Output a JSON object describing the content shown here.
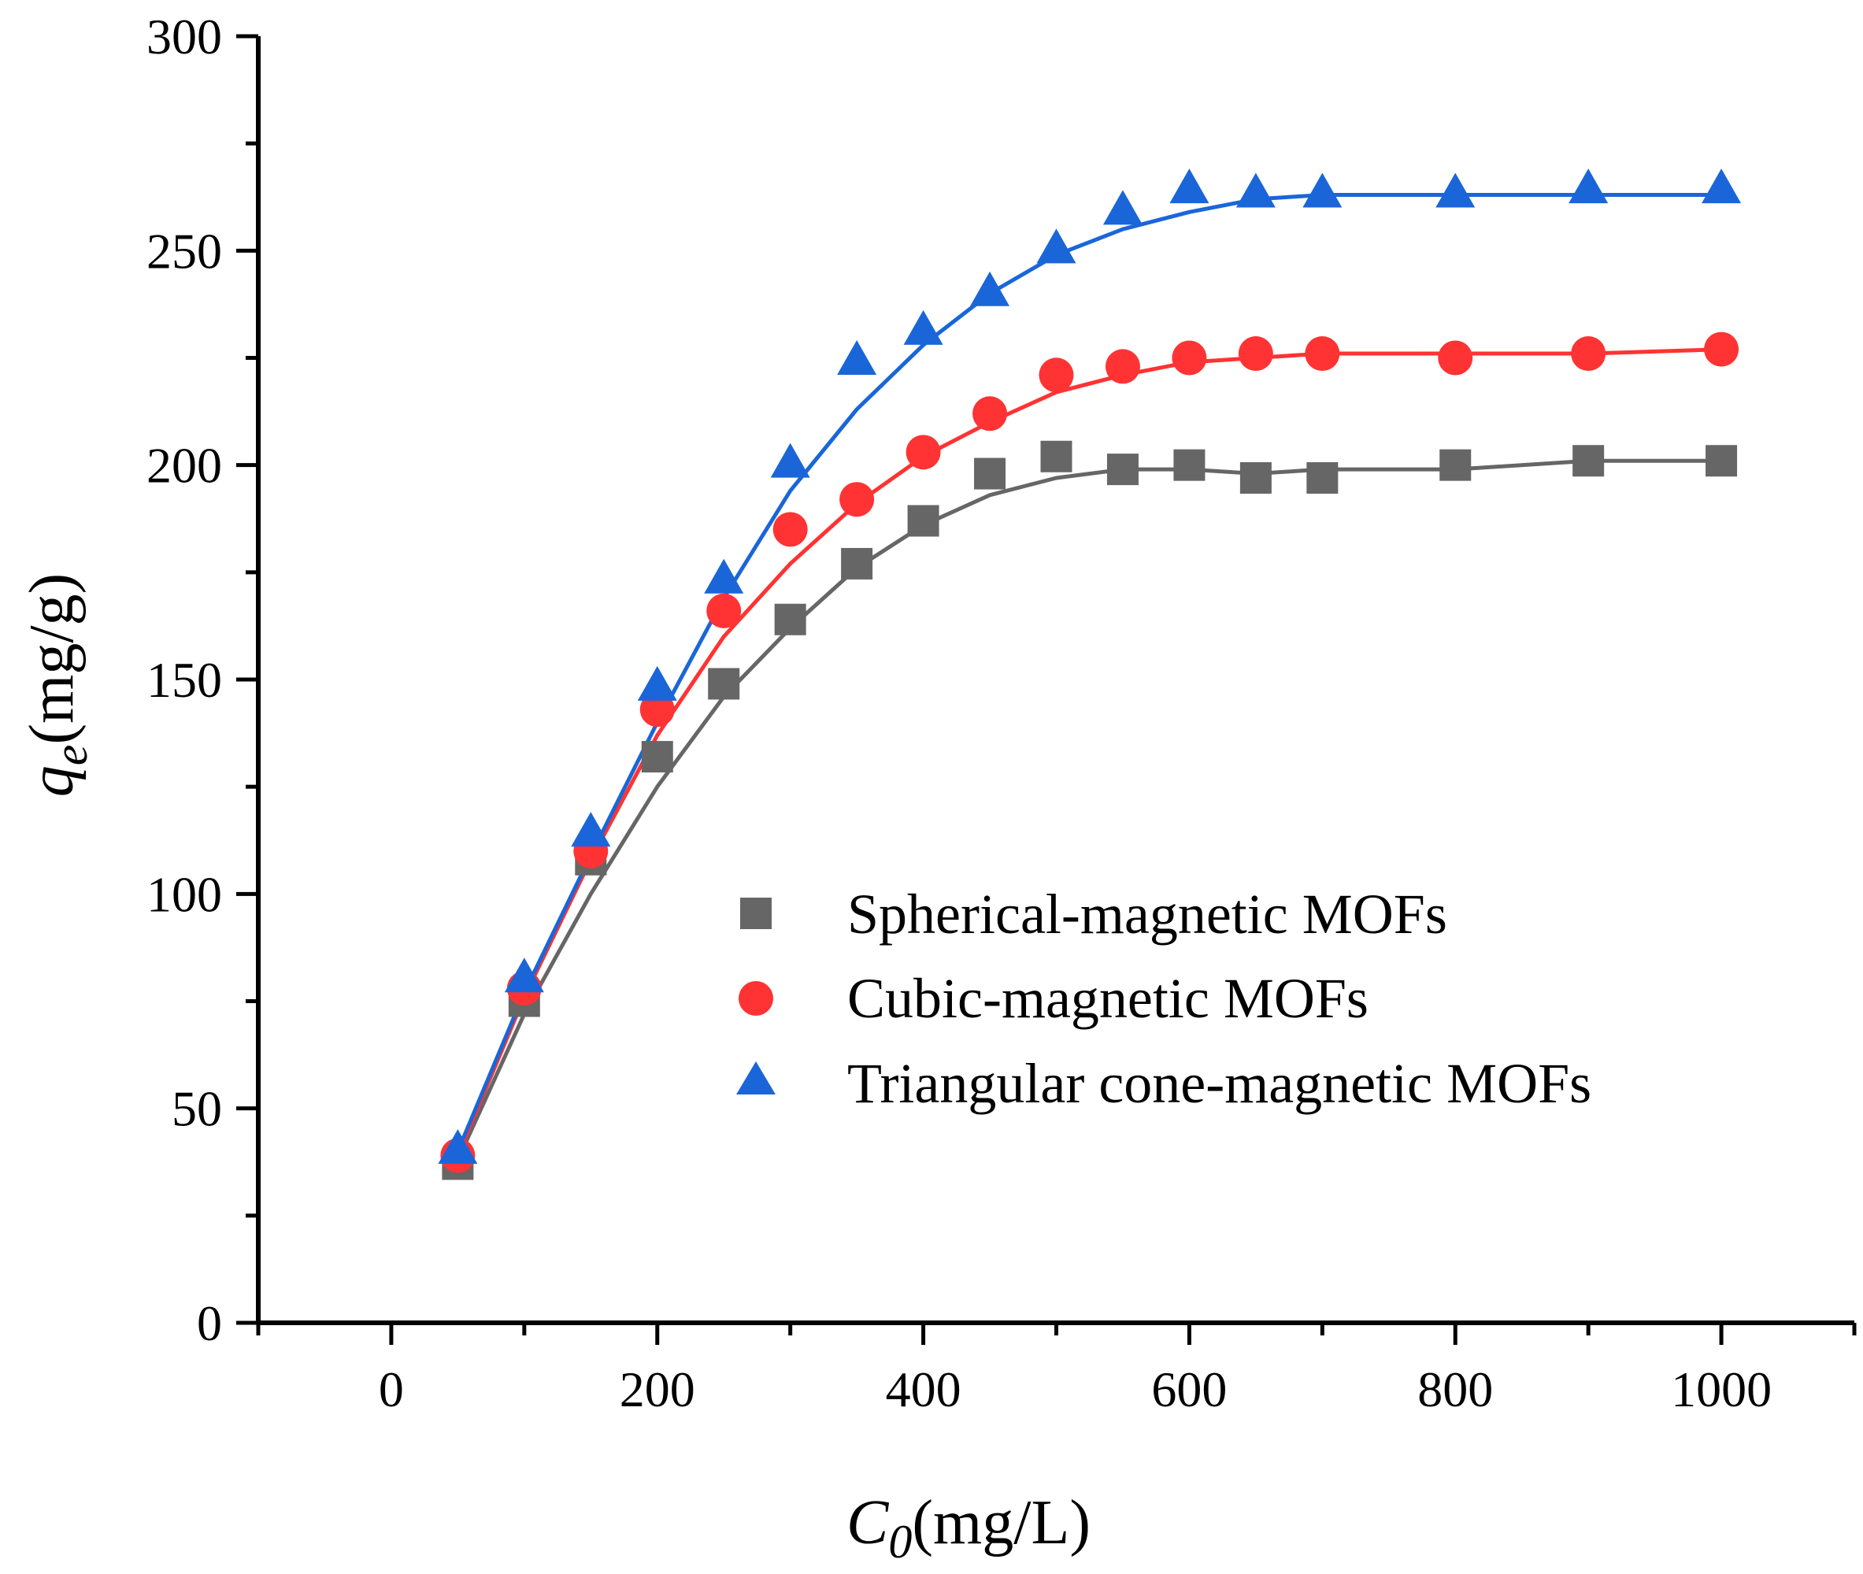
{
  "chart_data": {
    "type": "scatter",
    "title": "",
    "xlabel": {
      "main": "C",
      "sub": "0",
      "unit": "(mg/L)"
    },
    "ylabel": {
      "main": "q",
      "sub": "e",
      "unit": "(mg/g)"
    },
    "xlim": [
      -100,
      1100
    ],
    "ylim": [
      0,
      300
    ],
    "xticks": [
      0,
      200,
      400,
      600,
      800,
      1000
    ],
    "yticks": [
      0,
      50,
      100,
      150,
      200,
      250,
      300
    ],
    "x_tick_labels": [
      "0",
      "200",
      "400",
      "600",
      "800",
      "1000"
    ],
    "y_tick_labels": [
      "0",
      "50",
      "100",
      "150",
      "200",
      "250",
      "300"
    ],
    "grid": false,
    "legend_position": "center-right",
    "series": [
      {
        "name": "Spherical-magnetic MOFs",
        "marker": "square",
        "color": "#666666",
        "x": [
          50,
          100,
          150,
          200,
          250,
          300,
          350,
          400,
          450,
          500,
          550,
          600,
          650,
          700,
          800,
          900,
          1000
        ],
        "y": [
          37,
          75,
          108,
          132,
          149,
          164,
          177,
          187,
          198,
          202,
          199,
          200,
          197,
          197,
          200,
          201,
          201
        ],
        "fit_x": [
          50,
          100,
          150,
          200,
          250,
          300,
          350,
          400,
          450,
          500,
          550,
          600,
          650,
          700,
          800,
          900,
          1000
        ],
        "fit_y": [
          38,
          72,
          100,
          125,
          146,
          162,
          176,
          186,
          193,
          197,
          199,
          199,
          198,
          199,
          199,
          201,
          201
        ]
      },
      {
        "name": "Cubic-magnetic MOFs",
        "marker": "circle",
        "color": "#ff3333",
        "x": [
          50,
          100,
          150,
          200,
          250,
          300,
          350,
          400,
          450,
          500,
          550,
          600,
          650,
          700,
          800,
          900,
          1000
        ],
        "y": [
          39,
          78,
          110,
          143,
          166,
          185,
          192,
          203,
          212,
          221,
          223,
          225,
          226,
          226,
          225,
          226,
          227
        ],
        "fit_x": [
          50,
          100,
          150,
          200,
          250,
          300,
          350,
          400,
          450,
          500,
          550,
          600,
          650,
          700,
          800,
          900,
          1000
        ],
        "fit_y": [
          39,
          76,
          108,
          137,
          160,
          177,
          191,
          202,
          210,
          217,
          221,
          224,
          225,
          226,
          226,
          226,
          227
        ]
      },
      {
        "name": "Triangular cone-magnetic MOFs",
        "marker": "triangle",
        "color": "#1a66d9",
        "x": [
          50,
          100,
          150,
          200,
          250,
          300,
          350,
          400,
          450,
          500,
          550,
          600,
          650,
          700,
          800,
          900,
          1000
        ],
        "y": [
          40,
          80,
          114,
          148,
          173,
          200,
          224,
          231,
          240,
          250,
          259,
          264,
          263,
          263,
          263,
          264,
          264
        ],
        "fit_x": [
          50,
          100,
          150,
          200,
          250,
          300,
          350,
          400,
          450,
          500,
          550,
          600,
          650,
          700,
          800,
          900,
          1000
        ],
        "fit_y": [
          40,
          77,
          109,
          140,
          169,
          194,
          213,
          228,
          240,
          249,
          255,
          259,
          262,
          263,
          263,
          263,
          263
        ]
      }
    ]
  }
}
